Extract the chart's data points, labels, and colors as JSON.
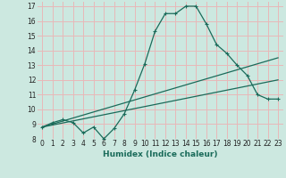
{
  "xlabel": "Humidex (Indice chaleur)",
  "xlim": [
    -0.5,
    23.5
  ],
  "ylim": [
    8,
    17.3
  ],
  "xticks": [
    0,
    1,
    2,
    3,
    4,
    5,
    6,
    7,
    8,
    9,
    10,
    11,
    12,
    13,
    14,
    15,
    16,
    17,
    18,
    19,
    20,
    21,
    22,
    23
  ],
  "yticks": [
    8,
    9,
    10,
    11,
    12,
    13,
    14,
    15,
    16,
    17
  ],
  "background_color": "#cce8e0",
  "grid_color": "#e8b8b8",
  "line_color": "#1a6b5a",
  "line1_x": [
    0,
    1,
    2,
    3,
    4,
    5,
    6,
    7,
    8,
    9,
    10,
    11,
    12,
    13,
    14,
    15,
    16,
    17,
    18,
    19,
    20,
    21,
    22,
    23
  ],
  "line1_y": [
    8.8,
    9.1,
    9.3,
    9.1,
    8.4,
    8.8,
    8.0,
    8.7,
    9.7,
    11.3,
    13.1,
    15.3,
    16.5,
    16.5,
    17.0,
    17.0,
    15.8,
    14.4,
    13.8,
    13.0,
    12.3,
    11.0,
    10.7,
    10.7
  ],
  "line2_x": [
    0,
    23
  ],
  "line2_y": [
    8.8,
    13.5
  ],
  "line3_x": [
    0,
    23
  ],
  "line3_y": [
    8.8,
    12.0
  ],
  "fontsize_tick": 5.5,
  "fontsize_xlabel": 6.5
}
